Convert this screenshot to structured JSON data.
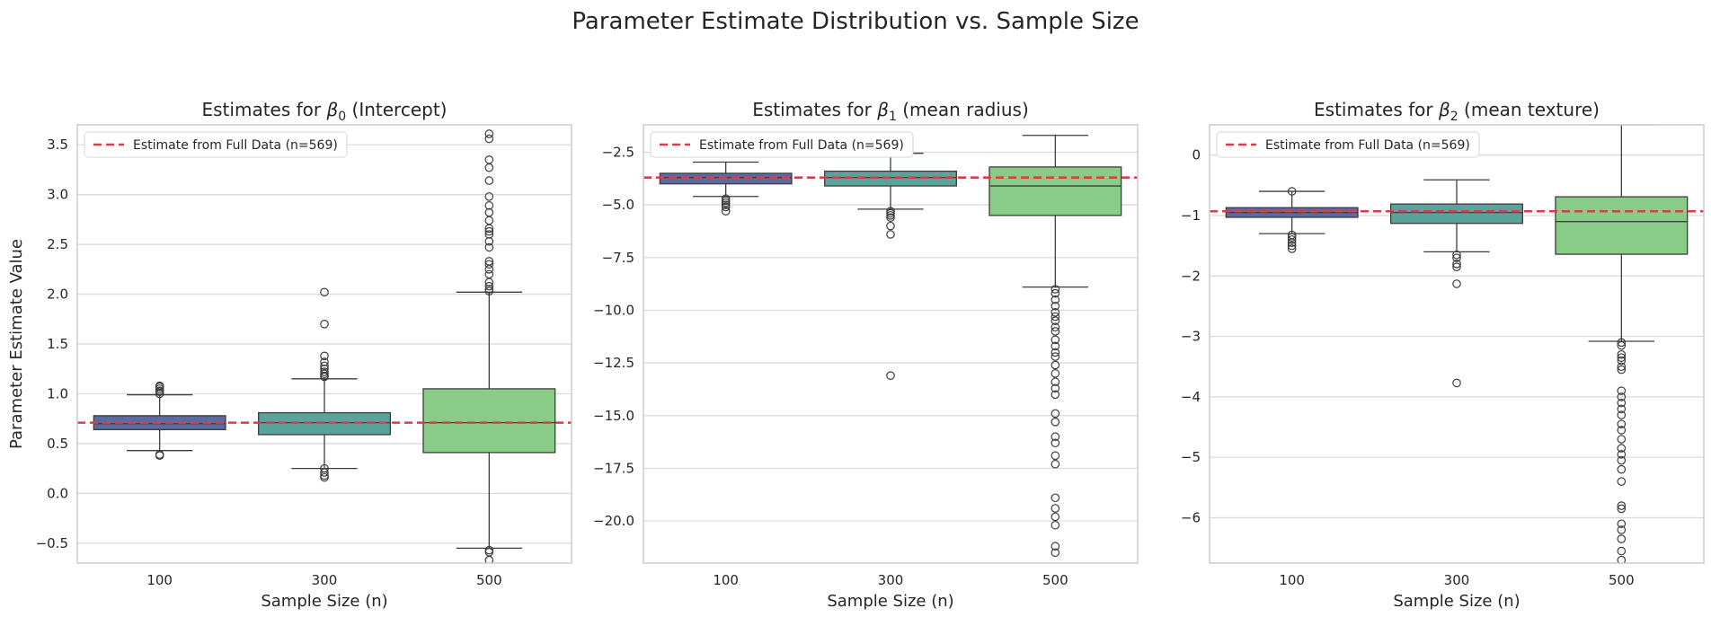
{
  "suptitle": "Parameter Estimate Distribution vs. Sample Size",
  "colors": {
    "box_100": "#5b6aa0",
    "box_300": "#5aa39b",
    "box_500": "#88cc88",
    "reference_line": "#d1404b",
    "grid": "#d9d9d9",
    "axes_edge": "#cccccc",
    "text": "#262626"
  },
  "chart_data": [
    {
      "type": "box",
      "title_prefix": "Estimates for ",
      "beta_symbol": "β",
      "beta_index": "0",
      "title_suffix": " (Intercept)",
      "ylabel": "Parameter Estimate Value",
      "xlabel": "Sample Size (n)",
      "categories": [
        "100",
        "300",
        "500"
      ],
      "ylim": [
        -0.7,
        3.7
      ],
      "yticks": [
        -0.5,
        0.0,
        0.5,
        1.0,
        1.5,
        2.0,
        2.5,
        3.0,
        3.5
      ],
      "ytick_labels": [
        "−0.5",
        "0.0",
        "0.5",
        "1.0",
        "1.5",
        "2.0",
        "2.5",
        "3.0",
        "3.5"
      ],
      "grid": true,
      "legend_position": "top-left",
      "reference_line": {
        "label": "Estimate from Full Data (n=569)",
        "value": 0.71
      },
      "boxes": [
        {
          "q1": 0.64,
          "median": 0.7,
          "q3": 0.78,
          "whisker_low": 0.43,
          "whisker_high": 0.99,
          "outliers": [
            0.38,
            0.39,
            1.0,
            1.02,
            1.03,
            1.05,
            1.07,
            1.08
          ]
        },
        {
          "q1": 0.59,
          "median": 0.71,
          "q3": 0.81,
          "whisker_low": 0.25,
          "whisker_high": 1.15,
          "outliers": [
            0.16,
            0.18,
            0.21,
            0.25,
            1.17,
            1.18,
            1.2,
            1.22,
            1.25,
            1.28,
            1.32,
            1.38,
            1.7,
            2.02
          ]
        },
        {
          "q1": 0.41,
          "median": 0.71,
          "q3": 1.05,
          "whisker_low": -0.55,
          "whisker_high": 2.02,
          "outliers": [
            -0.57,
            -0.59,
            -0.67,
            2.03,
            2.05,
            2.08,
            2.12,
            2.2,
            2.25,
            2.3,
            2.33,
            2.47,
            2.53,
            2.6,
            2.63,
            2.66,
            2.74,
            2.82,
            2.89,
            2.98,
            3.14,
            3.27,
            3.35,
            3.56,
            3.61
          ]
        }
      ]
    },
    {
      "type": "box",
      "title_prefix": "Estimates for ",
      "beta_symbol": "β",
      "beta_index": "1",
      "title_suffix": " (mean radius)",
      "ylabel": "",
      "xlabel": "Sample Size (n)",
      "categories": [
        "100",
        "300",
        "500"
      ],
      "ylim": [
        -22,
        -1.2
      ],
      "yticks": [
        -20.0,
        -17.5,
        -15.0,
        -12.5,
        -10.0,
        -7.5,
        -5.0,
        -2.5
      ],
      "ytick_labels": [
        "−20.0",
        "−17.5",
        "−15.0",
        "−12.5",
        "−10.0",
        "−7.5",
        "−5.0",
        "−2.5"
      ],
      "grid": true,
      "legend_position": "top-left",
      "reference_line": {
        "label": "Estimate from Full Data (n=569)",
        "value": -3.7
      },
      "boxes": [
        {
          "q1": -4.0,
          "median": -3.7,
          "q3": -3.5,
          "whisker_low": -4.6,
          "whisker_high": -2.97,
          "outliers": [
            -4.7,
            -4.8,
            -4.9,
            -5.0,
            -5.1,
            -5.3
          ]
        },
        {
          "q1": -4.1,
          "median": -3.7,
          "q3": -3.4,
          "whisker_low": -5.2,
          "whisker_high": -2.55,
          "outliers": [
            -5.3,
            -5.4,
            -5.5,
            -5.6,
            -6.0,
            -6.4,
            -13.1
          ]
        },
        {
          "q1": -5.5,
          "median": -4.1,
          "q3": -3.2,
          "whisker_low": -8.9,
          "whisker_high": -1.7,
          "outliers": [
            -9.0,
            -9.2,
            -9.5,
            -9.8,
            -10.1,
            -10.3,
            -10.5,
            -10.8,
            -11.0,
            -11.4,
            -11.7,
            -12.0,
            -12.2,
            -12.6,
            -13.0,
            -13.4,
            -13.7,
            -14.0,
            -14.9,
            -15.3,
            -16.0,
            -16.3,
            -16.9,
            -17.3,
            -18.9,
            -19.4,
            -19.8,
            -20.2,
            -21.2,
            -21.5
          ]
        }
      ]
    },
    {
      "type": "box",
      "title_prefix": "Estimates for ",
      "beta_symbol": "β",
      "beta_index": "2",
      "title_suffix": " (mean texture)",
      "ylabel": "",
      "xlabel": "Sample Size (n)",
      "categories": [
        "100",
        "300",
        "500"
      ],
      "ylim": [
        -6.75,
        0.5
      ],
      "yticks": [
        -6,
        -5,
        -4,
        -3,
        -2,
        -1,
        0
      ],
      "ytick_labels": [
        "−6",
        "−5",
        "−4",
        "−3",
        "−2",
        "−1",
        "0"
      ],
      "grid": true,
      "legend_position": "top-left",
      "reference_line": {
        "label": "Estimate from Full Data (n=569)",
        "value": -0.93
      },
      "boxes": [
        {
          "q1": -1.03,
          "median": -0.95,
          "q3": -0.87,
          "whisker_low": -1.3,
          "whisker_high": -0.6,
          "outliers": [
            -0.6,
            -1.32,
            -1.36,
            -1.4,
            -1.45,
            -1.5,
            -1.55
          ]
        },
        {
          "q1": -1.13,
          "median": -0.95,
          "q3": -0.81,
          "whisker_low": -1.6,
          "whisker_high": -0.41,
          "outliers": [
            -1.65,
            -1.7,
            -1.8,
            -1.85,
            -2.13,
            -3.77
          ]
        },
        {
          "q1": -1.64,
          "median": -1.1,
          "q3": -0.69,
          "whisker_low": -3.08,
          "whisker_high": 0.5,
          "outliers": [
            -3.1,
            -3.15,
            -3.3,
            -3.35,
            -3.4,
            -3.5,
            -3.55,
            -3.9,
            -4.0,
            -4.1,
            -4.2,
            -4.3,
            -4.45,
            -4.55,
            -4.7,
            -4.85,
            -4.95,
            -5.05,
            -5.2,
            -5.4,
            -5.8,
            -5.85,
            -6.1,
            -6.2,
            -6.35,
            -6.55,
            -6.7
          ]
        }
      ]
    }
  ]
}
